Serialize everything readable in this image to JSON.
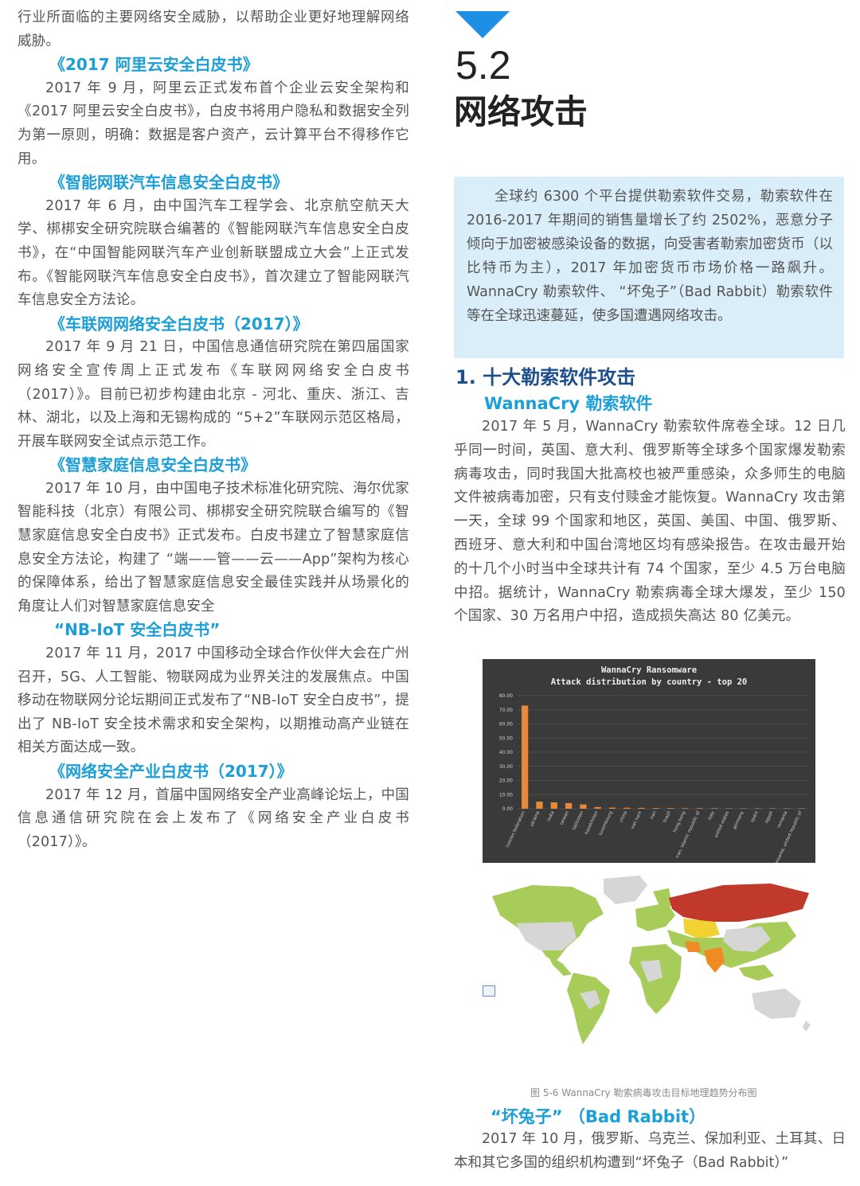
{
  "left": {
    "intro": "行业所面临的主要网络安全威胁，以帮助企业更好地理解网络威胁。",
    "sections": [
      {
        "title": "《2017 阿里云安全白皮书》",
        "body": "2017 年 9 月，阿里云正式发布首个企业云安全架构和《2017 阿里云安全白皮书》，白皮书将用户隐私和数据安全列为第一原则，明确：数据是客户资产，云计算平台不得移作它用。"
      },
      {
        "title": "《智能网联汽车信息安全白皮书》",
        "body": "2017 年 6 月，由中国汽车工程学会、北京航空航天大学、梆梆安全研究院联合编著的《智能网联汽车信息安全白皮书》，在“中国智能网联汽车产业创新联盟成立大会”上正式发布。《智能网联汽车信息安全白皮书》，首次建立了智能网联汽车信息安全方法论。"
      },
      {
        "title": "《车联网网络安全白皮书（2017）》",
        "body": "2017 年 9 月 21 日，中国信息通信研究院在第四届国家网络安全宣传周上正式发布《车联网网络安全白皮书（2017）》。目前已初步构建由北京 - 河北、重庆、浙江、吉林、湖北，以及上海和无锡构成的 “5+2”车联网示范区格局，开展车联网安全试点示范工作。"
      },
      {
        "title": "《智慧家庭信息安全白皮书》",
        "body": "2017 年 10 月，由中国电子技术标准化研究院、海尔优家智能科技（北京）有限公司、梆梆安全研究院联合编写的《智慧家庭信息安全白皮书》正式发布。白皮书建立了智慧家庭信息安全方法论，构建了 “端——管——云——App”架构为核心的保障体系，给出了智慧家庭信息安全最佳实践并从场景化的角度让人们对智慧家庭信息安全"
      },
      {
        "title": "“NB-IoT 安全白皮书”",
        "body": "2017 年 11 月，2017 中国移动全球合作伙伴大会在广州召开，5G、人工智能、物联网成为业界关注的发展焦点。中国移动在物联网分论坛期间正式发布了“NB-IoT 安全白皮书”，提出了 NB-IoT 安全技术需求和安全架构，以期推动高产业链在相关方面达成一致。"
      },
      {
        "title": "《网络安全产业白皮书（2017）》",
        "body": "2017 年 12 月，首届中国网络安全产业高峰论坛上，中国信息通信研究院在会上发布了《网络安全产业白皮书（2017）》。"
      }
    ]
  },
  "right": {
    "section_number": "5.2",
    "section_title": "网络攻击",
    "summary": "全球约 6300 个平台提供勒索软件交易，勒索软件在 2016-2017 年期间的销售量增长了约 2502%，恶意分子倾向于加密被感染设备的数据，向受害者勒索加密货币（以比特币为主），2017 年加密货币市场价格一路飙升。 WannaCry 勒索软件、 “坏兔子”（Bad Rabbit）勒索软件等在全球迅速蔓延，使多国遭遇网络攻击。",
    "heading1": "1. 十大勒索软件攻击",
    "wannacry_title": "WannaCry 勒索软件",
    "wannacry_body": "2017 年 5 月，WannaCry 勒索软件席卷全球。12 日几乎同一时间，英国、意大利、俄罗斯等全球多个国家爆发勒索病毒攻击，同时我国大批高校也被严重感染，众多师生的电脑文件被病毒加密，只有支付赎金才能恢复。WannaCry 攻击第一天，全球 99 个国家和地区，英国、美国、中国、俄罗斯、西班牙、意大利和中国台湾地区均有感染报告。在攻击最开始的十几个小时当中全球共计有 74 个国家，至少 4.5 万台电脑中招。据统计，WannaCry 勒索病毒全球大爆发，至少 150 个国家、30 万名用户中招，造成损失高达 80 亿美元。",
    "figure_caption": "图 5-6   WannaCry 勒索病毒攻击目标地理趋势分布图",
    "badrabbit_title": "“坏兔子” （Bad Rabbit）",
    "badrabbit_body": "2017 年 10 月，俄罗斯、乌克兰、保加利亚、土耳其、日本和其它多国的组织机构遭到“坏兔子（Bad Rabbit）”"
  },
  "chart_data": {
    "type": "bar",
    "title": "WannaCry  Ransomware",
    "subtitle": "Attack  distribution  by  country  -  top  20",
    "categories": [
      "russian federation",
      "ukraine",
      "india",
      "taiwan",
      "tajikistan",
      "kazakhstan",
      "luxembourg",
      "china",
      "viet nam",
      "iran",
      "brazil",
      "hong kong",
      "iran, islamic republic of",
      "italy",
      "united states",
      "germany",
      "spain",
      "egypt",
      "romania",
      "tanzania, united republic of"
    ],
    "values": [
      73,
      5,
      4.5,
      4,
      3,
      1.2,
      0.8,
      0.7,
      0.6,
      0.5,
      0.5,
      0.4,
      0.4,
      0.4,
      0.3,
      0.3,
      0.3,
      0.3,
      0.3,
      0.3
    ],
    "ylim": [
      0,
      80
    ],
    "yticks": [
      "0.00",
      "10.00",
      "20.00",
      "30.00",
      "40.00",
      "50.00",
      "60.00",
      "70.00",
      "80.00"
    ],
    "bar_color": "#e8893a",
    "background": "#3a3a3a",
    "grid": true
  },
  "map": {
    "colors": {
      "red": "#c0392b",
      "orange": "#f08a24",
      "yellow": "#f2d230",
      "green": "#a8cc5a",
      "gray": "#d6d6d6"
    }
  }
}
